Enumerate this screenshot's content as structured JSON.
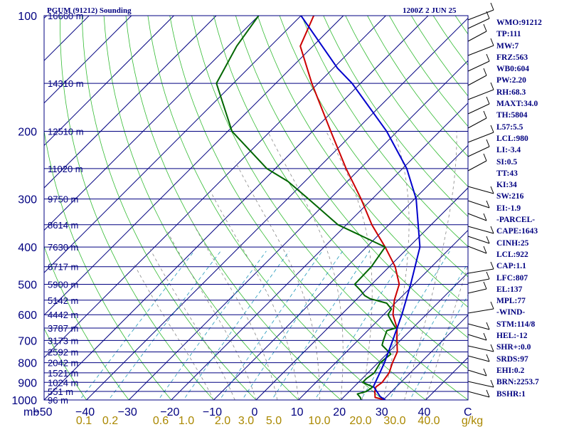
{
  "header": {
    "station": "PGUM (91212) Sounding",
    "valid": "1200Z  2 JUN 25"
  },
  "stats": [
    "WMO:91212",
    "TP:111",
    "MW:7",
    "FRZ:563",
    "WB0:604",
    "PW:2.20",
    "RH:68.3",
    "MAXT:34.0",
    "TH:5804",
    "L57:5.5",
    "LCL:980",
    "LI:-3.4",
    "SI:0.5",
    "TT:43",
    "KI:34",
    "SW:216",
    "EI:-1.9",
    "-PARCEL-",
    "CAPE:1643",
    "CINH:25",
    "LCL:922",
    "CAP:1.1",
    "LFC:807",
    "EL:137",
    "MPL:77",
    "-WIND-",
    "STM:114/8",
    "HEL:-12",
    "SHR+:0.0",
    "SRDS:97",
    "EHI:0.2",
    "BRN:2253.7",
    "BSHR:1"
  ],
  "chart_data": {
    "type": "line",
    "title": "PGUM (91212) Sounding",
    "plot_type": "skew-T log-P",
    "y_scale": "log",
    "xlabel": "C",
    "ylabel": "mb",
    "xlim": [
      -50,
      50
    ],
    "ylim": [
      1000,
      100
    ],
    "grid": true,
    "pressure_ticks": [
      100,
      200,
      300,
      400,
      500,
      600,
      700,
      800,
      900,
      1000
    ],
    "temperature_ticks": [
      -50,
      -40,
      -30,
      -20,
      -10,
      0,
      10,
      20,
      30,
      40
    ],
    "temperature_unit_label": "C",
    "mixing_ratio_unit_label": "g/kg",
    "mixing_ratio_ticks": [
      "0.1",
      "0.2",
      "0.6",
      "1.0",
      "2.0",
      "3.0",
      "5.0",
      "10.0",
      "20.0",
      "30.0",
      "40.0"
    ],
    "height_labels": [
      {
        "p": 100,
        "label": "16660 m"
      },
      {
        "p": 150,
        "label": "14310 m"
      },
      {
        "p": 200,
        "label": "12510 m"
      },
      {
        "p": 250,
        "label": "11020 m"
      },
      {
        "p": 300,
        "label": "9750 m"
      },
      {
        "p": 350,
        "label": "8614 m"
      },
      {
        "p": 400,
        "label": "7630 m"
      },
      {
        "p": 450,
        "label": "6717 m"
      },
      {
        "p": 500,
        "label": "5900 m"
      },
      {
        "p": 550,
        "label": "5142 m"
      },
      {
        "p": 600,
        "label": "4442 m"
      },
      {
        "p": 650,
        "label": "3787 m"
      },
      {
        "p": 700,
        "label": "3173 m"
      },
      {
        "p": 750,
        "label": "2592 m"
      },
      {
        "p": 800,
        "label": "2042 m"
      },
      {
        "p": 850,
        "label": "1521 m"
      },
      {
        "p": 900,
        "label": "1024 m"
      },
      {
        "p": 950,
        "label": "551 m"
      },
      {
        "p": 1000,
        "label": "96 m"
      }
    ],
    "series": [
      {
        "key": "temperature",
        "points": [
          [
            1000,
            30.5
          ],
          [
            985,
            27.5
          ],
          [
            950,
            26
          ],
          [
            925,
            25.2
          ],
          [
            900,
            25.6
          ],
          [
            850,
            25
          ],
          [
            800,
            23.4
          ],
          [
            750,
            22
          ],
          [
            700,
            19.2
          ],
          [
            650,
            16.3
          ],
          [
            600,
            12.2
          ],
          [
            550,
            9.1
          ],
          [
            500,
            6.5
          ],
          [
            450,
            1.4
          ],
          [
            400,
            -5.6
          ],
          [
            350,
            -14
          ],
          [
            300,
            -22.6
          ],
          [
            250,
            -33.3
          ],
          [
            200,
            -45.7
          ],
          [
            150,
            -61.5
          ],
          [
            120,
            -73
          ],
          [
            100,
            -77
          ]
        ]
      },
      {
        "key": "dewpoint",
        "points": [
          [
            1000,
            24.8
          ],
          [
            985,
            24
          ],
          [
            965,
            22.5
          ],
          [
            950,
            24
          ],
          [
            925,
            24.5
          ],
          [
            900,
            21
          ],
          [
            880,
            21
          ],
          [
            850,
            21.5
          ],
          [
            800,
            20.5
          ],
          [
            760,
            21
          ],
          [
            720,
            16.8
          ],
          [
            700,
            16
          ],
          [
            660,
            14.5
          ],
          [
            650,
            16
          ],
          [
            630,
            14
          ],
          [
            600,
            11
          ],
          [
            580,
            10.5
          ],
          [
            560,
            8
          ],
          [
            545,
            3
          ],
          [
            535,
            1
          ],
          [
            520,
            -1
          ],
          [
            500,
            -4
          ],
          [
            450,
            -4.2
          ],
          [
            400,
            -5.6
          ],
          [
            350,
            -22
          ],
          [
            300,
            -35
          ],
          [
            270,
            -44
          ],
          [
            250,
            -52
          ],
          [
            200,
            -69
          ],
          [
            150,
            -84
          ],
          [
            120,
            -88
          ],
          [
            100,
            -90
          ]
        ]
      },
      {
        "key": "parcel",
        "points": [
          [
            1000,
            30.5
          ],
          [
            980,
            28.5
          ],
          [
            922,
            24.5
          ],
          [
            850,
            22.8
          ],
          [
            800,
            21.5
          ],
          [
            700,
            18.2
          ],
          [
            600,
            14.3
          ],
          [
            500,
            9.2
          ],
          [
            400,
            2.6
          ],
          [
            300,
            -9.6
          ],
          [
            250,
            -19
          ],
          [
            200,
            -32.5
          ],
          [
            150,
            -52
          ],
          [
            137,
            -59
          ],
          [
            100,
            -80
          ]
        ]
      }
    ],
    "series_colors": {
      "temperature": "#cc0000",
      "dewpoint": "#006600",
      "parcel": "#0000cc"
    }
  },
  "colors": {
    "isobar": "#000080",
    "isotherm": "#000080",
    "dry_adiabat": "#33bb33",
    "moist_adiabat": "#888888",
    "mixing_ratio": "#2299bb",
    "axis_text": "#000080",
    "mixing_text": "#aa8800"
  }
}
